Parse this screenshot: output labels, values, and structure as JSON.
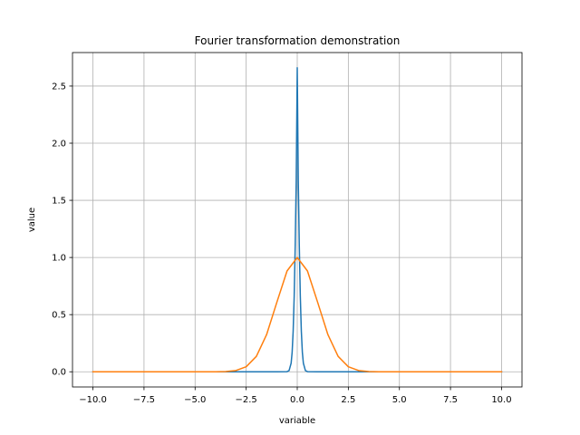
{
  "chart_data": {
    "type": "line",
    "title": "Fourier transformation demonstration",
    "xlabel": "variable",
    "ylabel": "value",
    "xlim": [
      -11.0,
      11.0
    ],
    "ylim": [
      -0.133,
      2.793
    ],
    "xticks": [
      -10.0,
      -7.5,
      -5.0,
      -2.5,
      0.0,
      2.5,
      5.0,
      7.5,
      10.0
    ],
    "xtick_labels": [
      "−10.0",
      "−7.5",
      "−5.0",
      "−2.5",
      "0.0",
      "2.5",
      "5.0",
      "7.5",
      "10.0"
    ],
    "yticks": [
      0.0,
      0.5,
      1.0,
      1.5,
      2.0,
      2.5
    ],
    "ytick_labels": [
      "0.0",
      "0.5",
      "1.0",
      "1.5",
      "2.0",
      "2.5"
    ],
    "grid": true,
    "series": [
      {
        "color": "#1f77b4",
        "x": [
          -10,
          -1,
          -0.5,
          -0.4,
          -0.3,
          -0.25,
          -0.2,
          -0.15,
          -0.1,
          -0.05,
          0,
          0.05,
          0.1,
          0.15,
          0.2,
          0.25,
          0.3,
          0.4,
          0.5,
          1,
          10
        ],
        "y": [
          0,
          0,
          0.001,
          0.01,
          0.075,
          0.17,
          0.355,
          0.66,
          1.105,
          1.675,
          2.66,
          1.675,
          1.105,
          0.66,
          0.355,
          0.17,
          0.075,
          0.01,
          0.001,
          0,
          0
        ]
      },
      {
        "color": "#ff7f0e",
        "x": [
          -10,
          -5,
          -4,
          -3.5,
          -3,
          -2.5,
          -2,
          -1.5,
          -1,
          -0.5,
          0,
          0.5,
          1,
          1.5,
          2,
          2.5,
          3,
          3.5,
          4,
          5,
          10
        ],
        "y": [
          0,
          0,
          0.0003,
          0.002,
          0.011,
          0.044,
          0.135,
          0.325,
          0.607,
          0.882,
          1.0,
          0.882,
          0.607,
          0.325,
          0.135,
          0.044,
          0.011,
          0.002,
          0.0003,
          0,
          0
        ]
      }
    ]
  }
}
